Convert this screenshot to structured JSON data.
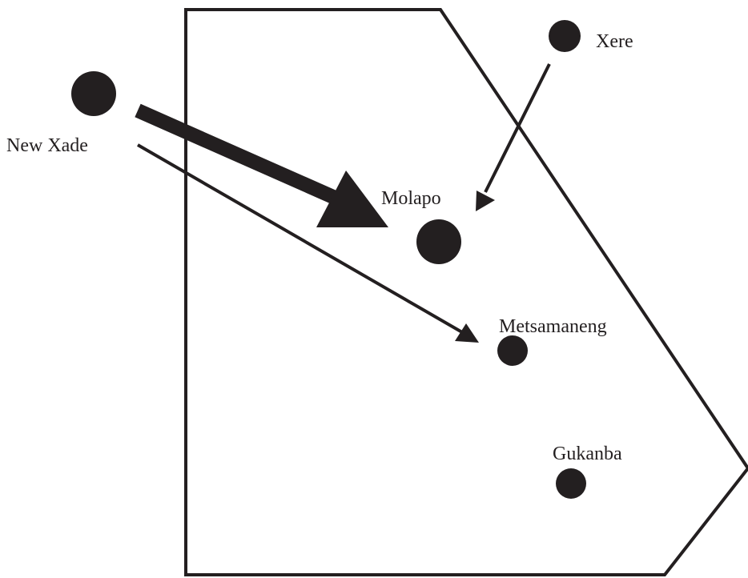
{
  "map": {
    "colors": {
      "ink": "#231f20",
      "background": "#ffffff"
    },
    "places": [
      {
        "id": "new-xade",
        "label": "New Xade"
      },
      {
        "id": "xere",
        "label": "Xere"
      },
      {
        "id": "molapo",
        "label": "Molapo"
      },
      {
        "id": "metsamaneng",
        "label": "Metsamaneng"
      },
      {
        "id": "gukanba",
        "label": "Gukanba"
      }
    ],
    "flows": [
      {
        "from": "New Xade",
        "to": "Molapo",
        "weight": "heavy"
      },
      {
        "from": "New Xade",
        "to": "Metsamaneng",
        "weight": "light"
      },
      {
        "from": "Xere",
        "to": "Molapo",
        "weight": "light"
      }
    ]
  }
}
